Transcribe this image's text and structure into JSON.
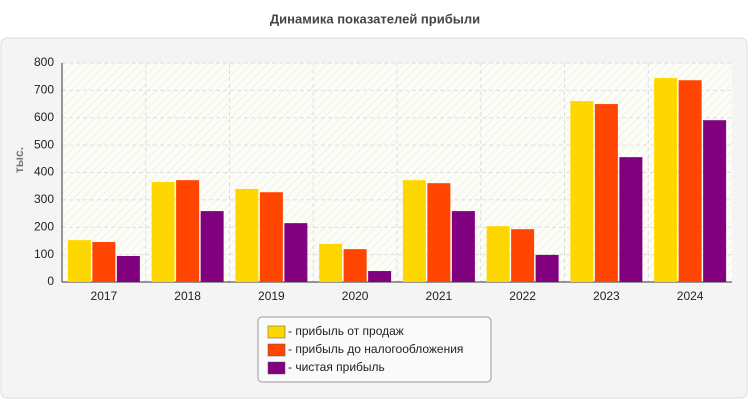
{
  "chart_data": {
    "type": "bar",
    "title": "Динамика показателей прибыли",
    "y_label": "тыс.",
    "categories": [
      "2017",
      "2018",
      "2019",
      "2020",
      "2021",
      "2022",
      "2023",
      "2024"
    ],
    "series": [
      {
        "name": "- прибыль от продаж",
        "color": "#ffd700",
        "values": [
          153,
          365,
          340,
          139,
          372,
          204,
          661,
          745
        ]
      },
      {
        "name": "- прибыль до налогообложения",
        "color": "#ff4500",
        "values": [
          146,
          372,
          328,
          120,
          361,
          193,
          650,
          737
        ]
      },
      {
        "name": "- чистая прибыль",
        "color": "#800080",
        "values": [
          95,
          259,
          215,
          40,
          259,
          99,
          456,
          591
        ]
      }
    ],
    "ylim": [
      0,
      800
    ],
    "yticks": [
      0,
      100,
      200,
      300,
      400,
      500,
      600,
      700,
      800
    ],
    "grid": true,
    "legend": "bottom"
  }
}
